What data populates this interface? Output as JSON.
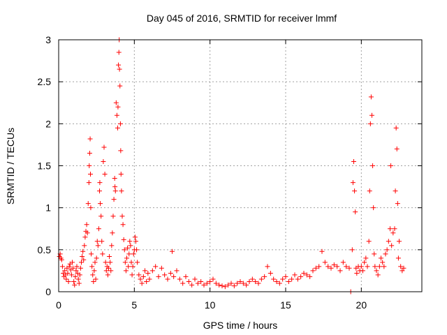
{
  "chart_data": {
    "type": "scatter",
    "title": "Day 045 of 2016, SRMTID for receiver lmmf",
    "xlabel": "GPS time / hours",
    "ylabel": "SRMTID / TECUs",
    "xlim": [
      0,
      24
    ],
    "ylim": [
      0,
      3
    ],
    "xticks": [
      0,
      5,
      10,
      15,
      20
    ],
    "xtick_labels": [
      "0",
      "5",
      "10",
      "15",
      "20"
    ],
    "yticks": [
      0,
      0.5,
      1,
      1.5,
      2,
      2.5,
      3
    ],
    "ytick_labels": [
      "0",
      "0.5",
      "1",
      "1.5",
      "2",
      "2.5",
      "3"
    ],
    "grid": true,
    "marker": "+",
    "series": [
      {
        "name": "SRMTID",
        "color": "#ff0000",
        "points": [
          [
            0.05,
            0.42
          ],
          [
            0.1,
            0.45
          ],
          [
            0.15,
            0.4
          ],
          [
            0.2,
            0.38
          ],
          [
            0.25,
            0.3
          ],
          [
            0.3,
            0.22
          ],
          [
            0.35,
            0.18
          ],
          [
            0.4,
            0.25
          ],
          [
            0.45,
            0.2
          ],
          [
            0.5,
            0.15
          ],
          [
            0.55,
            0.28
          ],
          [
            0.6,
            0.22
          ],
          [
            0.65,
            0.12
          ],
          [
            0.7,
            0.3
          ],
          [
            0.75,
            0.33
          ],
          [
            0.8,
            0.26
          ],
          [
            0.85,
            0.2
          ],
          [
            0.9,
            0.35
          ],
          [
            0.95,
            0.28
          ],
          [
            1.0,
            0.12
          ],
          [
            1.05,
            0.08
          ],
          [
            1.1,
            0.18
          ],
          [
            1.15,
            0.25
          ],
          [
            1.2,
            0.3
          ],
          [
            1.25,
            0.22
          ],
          [
            1.3,
            0.15
          ],
          [
            1.35,
            0.1
          ],
          [
            1.4,
            0.2
          ],
          [
            1.45,
            0.28
          ],
          [
            1.5,
            0.35
          ],
          [
            1.55,
            0.42
          ],
          [
            1.6,
            0.48
          ],
          [
            1.65,
            0.38
          ],
          [
            1.7,
            0.55
          ],
          [
            1.75,
            0.65
          ],
          [
            1.8,
            0.72
          ],
          [
            1.85,
            0.8
          ],
          [
            1.9,
            0.7
          ],
          [
            1.95,
            1.05
          ],
          [
            2.0,
            1.3
          ],
          [
            2.02,
            1.5
          ],
          [
            2.05,
            1.65
          ],
          [
            2.08,
            1.82
          ],
          [
            2.1,
            1.4
          ],
          [
            2.12,
            1.0
          ],
          [
            2.15,
            0.45
          ],
          [
            2.2,
            0.3
          ],
          [
            2.25,
            0.2
          ],
          [
            2.3,
            0.12
          ],
          [
            2.35,
            0.25
          ],
          [
            2.4,
            0.35
          ],
          [
            2.45,
            0.15
          ],
          [
            2.5,
            0.4
          ],
          [
            2.55,
            0.6
          ],
          [
            2.6,
            0.55
          ],
          [
            2.65,
            0.75
          ],
          [
            2.7,
            1.2
          ],
          [
            2.72,
            1.3
          ],
          [
            2.75,
            1.05
          ],
          [
            2.8,
            0.9
          ],
          [
            2.85,
            0.6
          ],
          [
            2.9,
            0.45
          ],
          [
            2.95,
            1.55
          ],
          [
            3.0,
            1.72
          ],
          [
            3.05,
            1.4
          ],
          [
            3.1,
            0.35
          ],
          [
            3.15,
            0.25
          ],
          [
            3.2,
            0.3
          ],
          [
            3.25,
            0.2
          ],
          [
            3.3,
            0.28
          ],
          [
            3.35,
            0.42
          ],
          [
            3.4,
            0.35
          ],
          [
            3.45,
            0.25
          ],
          [
            3.5,
            0.55
          ],
          [
            3.55,
            0.7
          ],
          [
            3.6,
            0.9
          ],
          [
            3.65,
            1.1
          ],
          [
            3.7,
            1.35
          ],
          [
            3.72,
            1.25
          ],
          [
            3.75,
            1.2
          ],
          [
            3.8,
            2.25
          ],
          [
            3.85,
            2.1
          ],
          [
            3.9,
            1.95
          ],
          [
            3.92,
            2.2
          ],
          [
            3.95,
            2.7
          ],
          [
            3.98,
            2.85
          ],
          [
            4.0,
            3.0
          ],
          [
            4.02,
            2.65
          ],
          [
            4.05,
            2.45
          ],
          [
            4.08,
            2.0
          ],
          [
            4.1,
            1.68
          ],
          [
            4.12,
            1.4
          ],
          [
            4.15,
            1.2
          ],
          [
            4.2,
            0.9
          ],
          [
            4.25,
            0.8
          ],
          [
            4.3,
            0.62
          ],
          [
            4.35,
            0.5
          ],
          [
            4.4,
            0.35
          ],
          [
            4.45,
            0.25
          ],
          [
            4.5,
            0.4
          ],
          [
            4.55,
            0.52
          ],
          [
            4.6,
            0.3
          ],
          [
            4.65,
            0.45
          ],
          [
            4.7,
            0.6
          ],
          [
            4.75,
            0.55
          ],
          [
            4.8,
            0.35
          ],
          [
            4.85,
            0.2
          ],
          [
            4.9,
            0.3
          ],
          [
            4.95,
            0.45
          ],
          [
            5.0,
            0.5
          ],
          [
            5.05,
            0.65
          ],
          [
            5.1,
            0.6
          ],
          [
            5.15,
            0.5
          ],
          [
            5.2,
            0.35
          ],
          [
            5.3,
            0.2
          ],
          [
            5.4,
            0.15
          ],
          [
            5.5,
            0.1
          ],
          [
            5.6,
            0.18
          ],
          [
            5.7,
            0.25
          ],
          [
            5.8,
            0.12
          ],
          [
            5.9,
            0.22
          ],
          [
            6.0,
            0.15
          ],
          [
            6.2,
            0.25
          ],
          [
            6.4,
            0.3
          ],
          [
            6.6,
            0.18
          ],
          [
            6.8,
            0.28
          ],
          [
            7.0,
            0.2
          ],
          [
            7.2,
            0.15
          ],
          [
            7.4,
            0.22
          ],
          [
            7.5,
            0.48
          ],
          [
            7.6,
            0.18
          ],
          [
            7.8,
            0.25
          ],
          [
            8.0,
            0.15
          ],
          [
            8.2,
            0.1
          ],
          [
            8.4,
            0.18
          ],
          [
            8.6,
            0.12
          ],
          [
            8.8,
            0.08
          ],
          [
            9.0,
            0.15
          ],
          [
            9.2,
            0.1
          ],
          [
            9.4,
            0.12
          ],
          [
            9.6,
            0.08
          ],
          [
            9.8,
            0.1
          ],
          [
            10.0,
            0.12
          ],
          [
            10.2,
            0.15
          ],
          [
            10.4,
            0.1
          ],
          [
            10.6,
            0.08
          ],
          [
            10.8,
            0.07
          ],
          [
            11.0,
            0.06
          ],
          [
            11.2,
            0.08
          ],
          [
            11.4,
            0.1
          ],
          [
            11.6,
            0.07
          ],
          [
            11.8,
            0.1
          ],
          [
            12.0,
            0.12
          ],
          [
            12.2,
            0.1
          ],
          [
            12.4,
            0.08
          ],
          [
            12.6,
            0.12
          ],
          [
            12.8,
            0.15
          ],
          [
            13.0,
            0.12
          ],
          [
            13.2,
            0.1
          ],
          [
            13.4,
            0.15
          ],
          [
            13.6,
            0.18
          ],
          [
            13.8,
            0.3
          ],
          [
            14.0,
            0.22
          ],
          [
            14.2,
            0.15
          ],
          [
            14.4,
            0.12
          ],
          [
            14.6,
            0.1
          ],
          [
            14.8,
            0.15
          ],
          [
            15.0,
            0.18
          ],
          [
            15.2,
            0.12
          ],
          [
            15.4,
            0.15
          ],
          [
            15.6,
            0.2
          ],
          [
            15.8,
            0.15
          ],
          [
            16.0,
            0.18
          ],
          [
            16.2,
            0.22
          ],
          [
            16.4,
            0.2
          ],
          [
            16.6,
            0.18
          ],
          [
            16.8,
            0.25
          ],
          [
            17.0,
            0.28
          ],
          [
            17.2,
            0.3
          ],
          [
            17.4,
            0.48
          ],
          [
            17.6,
            0.35
          ],
          [
            17.8,
            0.3
          ],
          [
            18.0,
            0.28
          ],
          [
            18.2,
            0.32
          ],
          [
            18.4,
            0.3
          ],
          [
            18.6,
            0.25
          ],
          [
            18.8,
            0.35
          ],
          [
            19.0,
            0.3
          ],
          [
            19.2,
            0.28
          ],
          [
            19.3,
            0.0
          ],
          [
            19.4,
            0.5
          ],
          [
            19.45,
            1.3
          ],
          [
            19.5,
            1.55
          ],
          [
            19.55,
            1.2
          ],
          [
            19.6,
            0.95
          ],
          [
            19.65,
            0.28
          ],
          [
            19.7,
            0.22
          ],
          [
            19.8,
            0.3
          ],
          [
            19.9,
            0.25
          ],
          [
            20.0,
            0.3
          ],
          [
            20.1,
            0.25
          ],
          [
            20.2,
            0.35
          ],
          [
            20.3,
            0.4
          ],
          [
            20.4,
            0.3
          ],
          [
            20.5,
            0.6
          ],
          [
            20.55,
            1.2
          ],
          [
            20.6,
            2.0
          ],
          [
            20.65,
            2.32
          ],
          [
            20.7,
            2.1
          ],
          [
            20.75,
            1.5
          ],
          [
            20.8,
            1.0
          ],
          [
            20.85,
            0.45
          ],
          [
            20.9,
            0.3
          ],
          [
            21.0,
            0.25
          ],
          [
            21.1,
            0.2
          ],
          [
            21.2,
            0.3
          ],
          [
            21.3,
            0.4
          ],
          [
            21.4,
            0.35
          ],
          [
            21.5,
            0.3
          ],
          [
            21.6,
            0.45
          ],
          [
            21.7,
            0.5
          ],
          [
            21.8,
            0.6
          ],
          [
            21.9,
            0.75
          ],
          [
            21.95,
            1.5
          ],
          [
            22.0,
            0.55
          ],
          [
            22.1,
            0.7
          ],
          [
            22.2,
            0.75
          ],
          [
            22.25,
            1.2
          ],
          [
            22.3,
            1.95
          ],
          [
            22.35,
            1.7
          ],
          [
            22.4,
            1.05
          ],
          [
            22.45,
            0.4
          ],
          [
            22.5,
            0.6
          ],
          [
            22.6,
            0.3
          ],
          [
            22.7,
            0.25
          ],
          [
            22.8,
            0.28
          ]
        ]
      }
    ]
  }
}
